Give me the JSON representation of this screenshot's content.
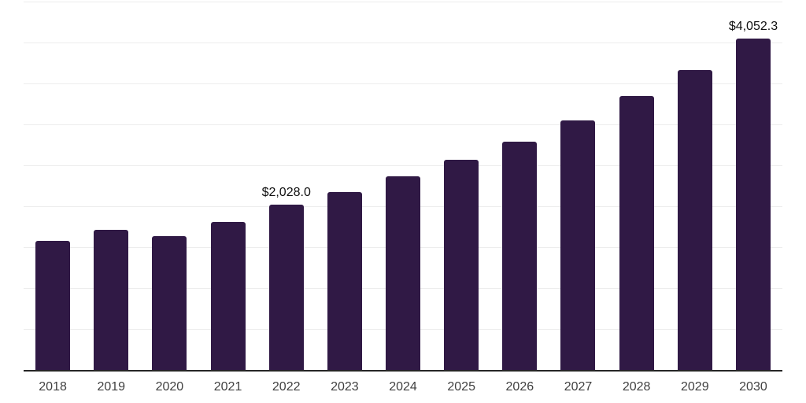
{
  "chart_data": {
    "type": "bar",
    "title": "",
    "xlabel": "",
    "ylabel": "",
    "categories": [
      "2018",
      "2019",
      "2020",
      "2021",
      "2022",
      "2023",
      "2024",
      "2025",
      "2026",
      "2027",
      "2028",
      "2029",
      "2030"
    ],
    "values": [
      1586,
      1720,
      1642,
      1816,
      2028.0,
      2178,
      2368,
      2572,
      2792,
      3053,
      3349,
      3674,
      4052.3
    ],
    "data_labels": {
      "2022": "$2,028.0",
      "2030": "$4,052.3"
    },
    "ylim": [
      0,
      4500
    ],
    "gridline_step": 500,
    "grid": "horizontal-only",
    "legend": "none",
    "y_tick_labels_shown": false,
    "colors": {
      "bar": "#301945",
      "gridline": "#ededed",
      "axis_line": "#262626",
      "tick_label": "#404040",
      "data_label": "#111111",
      "background": "#ffffff"
    }
  }
}
